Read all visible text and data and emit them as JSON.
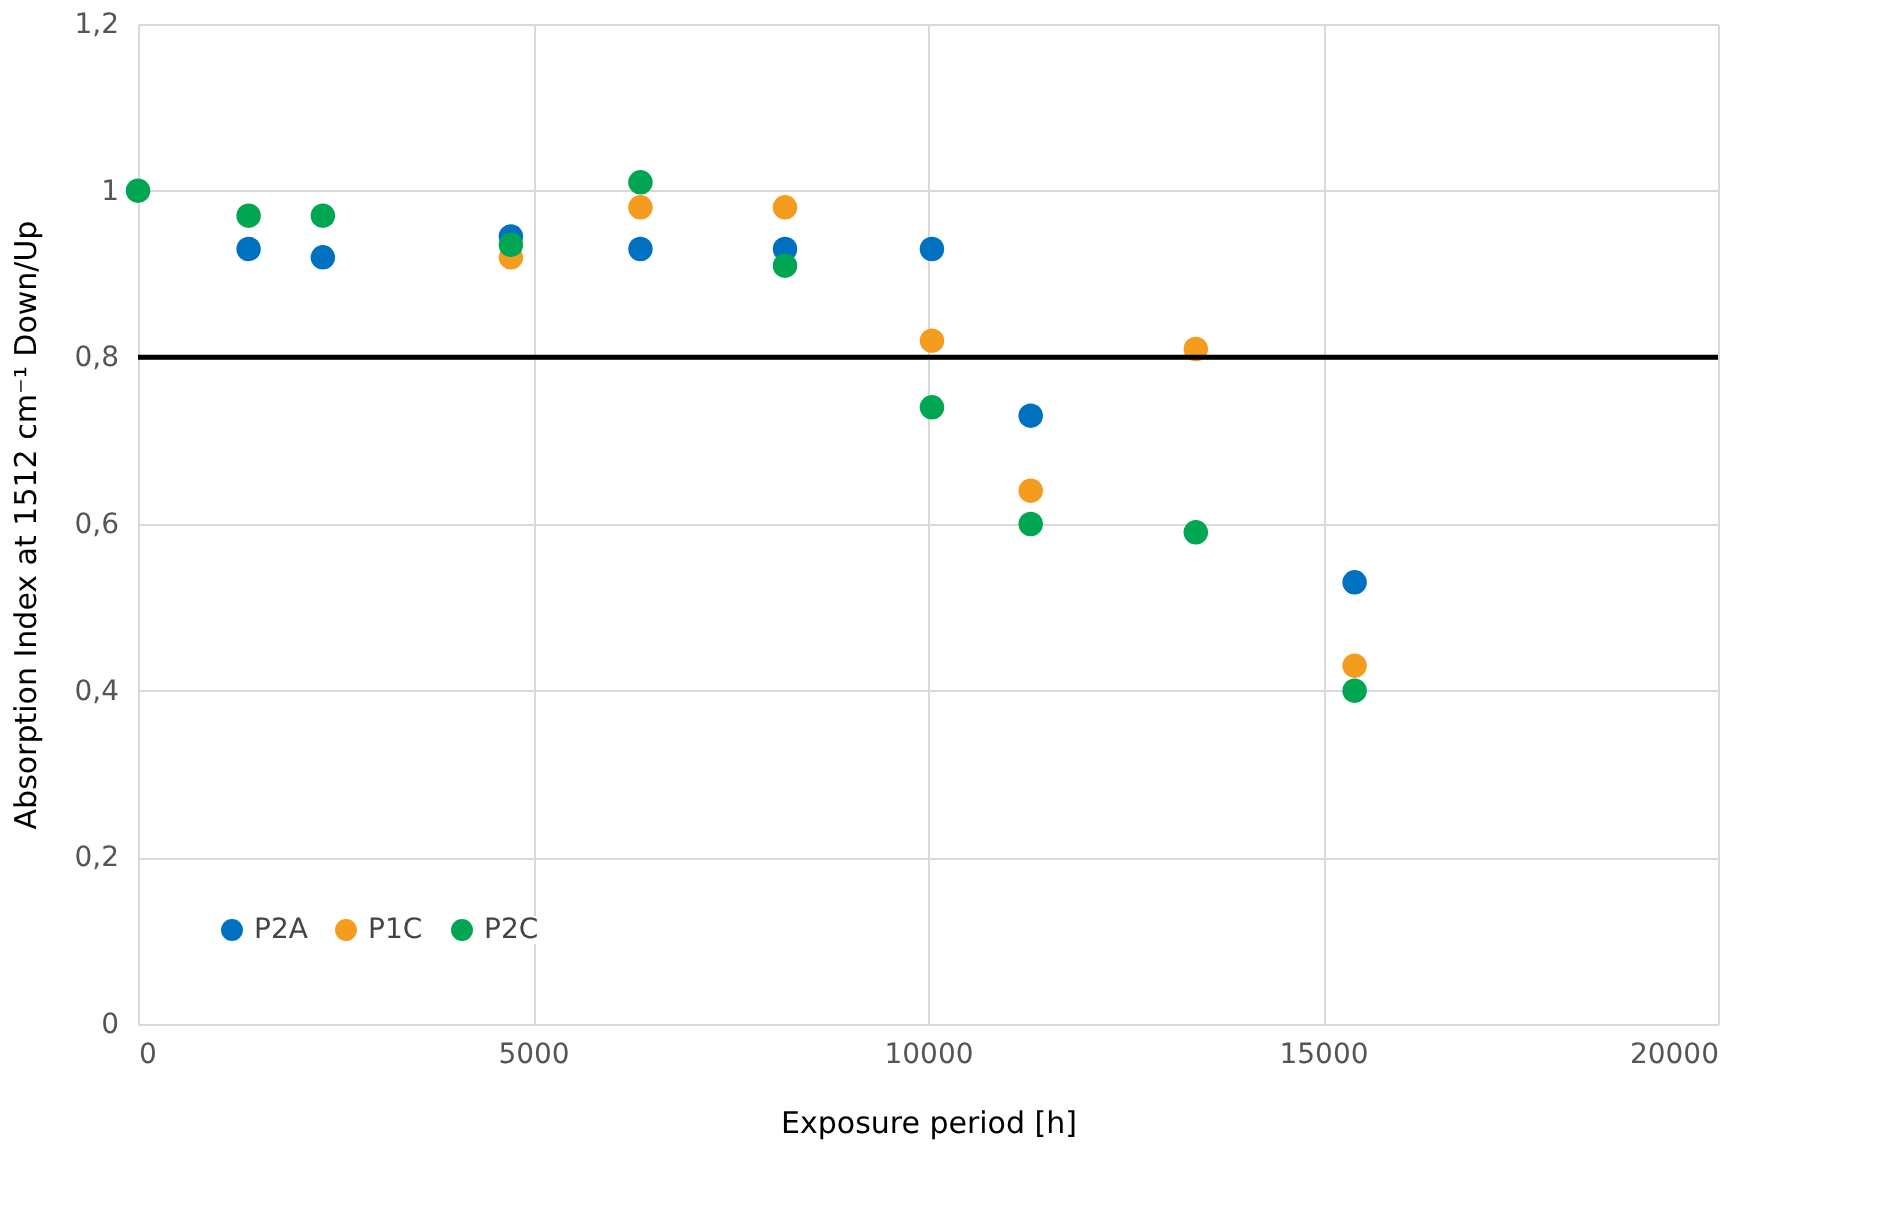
{
  "chart_data": {
    "type": "scatter",
    "xlabel": "Exposure period [h]",
    "ylabel": "Absorption Index at 1512 cm⁻¹ Down/Up",
    "x": [
      0,
      1400,
      2340,
      4720,
      6360,
      8190,
      10050,
      11300,
      13390,
      15400
    ],
    "series": [
      {
        "name": "P2A",
        "color": "#0070c0",
        "values": [
          null,
          0.93,
          0.92,
          0.945,
          0.93,
          0.93,
          0.93,
          0.73,
          null,
          0.53
        ]
      },
      {
        "name": "P1C",
        "color": "#f39c1e",
        "values": [
          null,
          null,
          null,
          0.92,
          0.98,
          0.98,
          0.82,
          0.64,
          0.81,
          0.43
        ]
      },
      {
        "name": "P2C",
        "color": "#00a651",
        "values": [
          1,
          0.97,
          0.97,
          0.935,
          1.01,
          0.91,
          0.74,
          0.6,
          0.59,
          0.4
        ]
      }
    ],
    "xlim": [
      0,
      20000
    ],
    "xticks": [
      0,
      5000,
      10000,
      15000,
      20000
    ],
    "ylim": [
      0,
      1.2
    ],
    "yticks": [
      {
        "value": 0,
        "label": "0"
      },
      {
        "value": 0.2,
        "label": "0,2"
      },
      {
        "value": 0.4,
        "label": "0,4"
      },
      {
        "value": 0.6,
        "label": "0,6"
      },
      {
        "value": 0.8,
        "label": "0,8"
      },
      {
        "value": 1,
        "label": "1"
      },
      {
        "value": 1.2,
        "label": "1,2"
      }
    ],
    "ref_lines": [
      {
        "axis": "y",
        "value": 0.8,
        "color": "#000000"
      }
    ],
    "grid": true,
    "legend": "bottom left",
    "marker": "circle"
  }
}
